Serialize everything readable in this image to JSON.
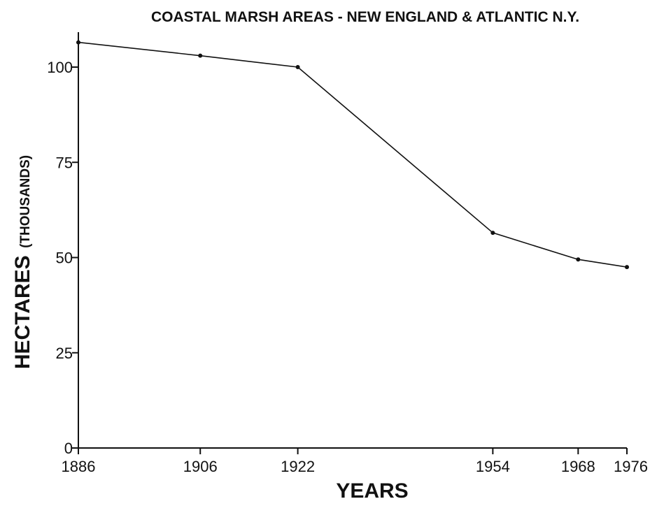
{
  "chart_data": {
    "type": "line",
    "title": "COASTAL MARSH AREAS - NEW ENGLAND & ATLANTIC N.Y.",
    "xlabel": "YEARS",
    "ylabel": "HECTARES",
    "ylabel_unit": "(THOUSANDS)",
    "x": [
      1886,
      1906,
      1922,
      1954,
      1968,
      1976
    ],
    "y": [
      106.5,
      103,
      100,
      56.5,
      49.5,
      47.5
    ],
    "xlim": [
      1886,
      1976
    ],
    "ylim": [
      0,
      108
    ],
    "xticks": [
      "1886",
      "1906",
      "1922",
      "1954",
      "1968",
      "1976"
    ],
    "yticks": [
      "0",
      "25",
      "50",
      "75",
      "100"
    ],
    "grid": false,
    "line_color": "#111111"
  }
}
